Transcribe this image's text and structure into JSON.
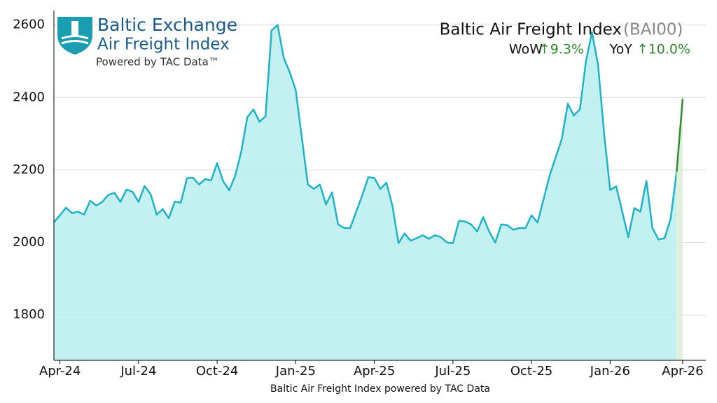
{
  "chart_data": {
    "type": "area",
    "brand": {
      "name": "Baltic Exchange",
      "product": "Air Freight Index",
      "powered": "Powered by TAC Data™"
    },
    "title": "Baltic Air Freight Index",
    "code": "(BAI00)",
    "changes": [
      {
        "label": "WoW",
        "value_label": "↑9.3%"
      },
      {
        "label": "YoY",
        "value_label": "↑10.0%"
      }
    ],
    "footer": "Baltic Air Freight Index powered by TAC Data",
    "categories": [
      null,
      "Apr-24",
      null,
      null,
      null,
      null,
      null,
      null,
      null,
      null,
      null,
      null,
      null,
      null,
      "Jul-24",
      null,
      null,
      null,
      null,
      null,
      null,
      null,
      null,
      null,
      null,
      null,
      null,
      "Oct-24",
      null,
      null,
      null,
      null,
      null,
      null,
      null,
      null,
      null,
      null,
      null,
      null,
      "Jan-25",
      null,
      null,
      null,
      null,
      null,
      null,
      null,
      null,
      null,
      null,
      null,
      null,
      "Apr-25",
      null,
      null,
      null,
      null,
      null,
      null,
      null,
      null,
      null,
      null,
      null,
      null,
      "Jul-25",
      null,
      null,
      null,
      null,
      null,
      null,
      null,
      null,
      null,
      null,
      null,
      null,
      "Oct-25",
      null,
      null,
      null,
      null,
      null,
      null,
      null,
      null,
      null,
      null,
      null,
      null,
      "Jan-26",
      null,
      null,
      null,
      null,
      null,
      null,
      null,
      null,
      null,
      null,
      null,
      "Apr-26"
    ],
    "series": [
      {
        "color": "#1fb3c8",
        "fill": "#bdeef0",
        "latest_color": "#2e8b2e",
        "latest_fill": "#dff0d8",
        "values": [
          2056,
          2075,
          2096,
          2081,
          2085,
          2077,
          2115,
          2102,
          2112,
          2131,
          2137,
          2112,
          2146,
          2140,
          2112,
          2156,
          2133,
          2077,
          2092,
          2067,
          2113,
          2110,
          2177,
          2179,
          2160,
          2175,
          2171,
          2219,
          2169,
          2144,
          2185,
          2252,
          2346,
          2367,
          2333,
          2348,
          2585,
          2600,
          2510,
          2470,
          2420,
          2290,
          2160,
          2148,
          2160,
          2105,
          2138,
          2050,
          2040,
          2040,
          2085,
          2130,
          2180,
          2178,
          2148,
          2165,
          2100,
          1998,
          2025,
          2005,
          2012,
          2020,
          2010,
          2020,
          2015,
          2000,
          1998,
          2060,
          2058,
          2050,
          2030,
          2070,
          2030,
          2000,
          2050,
          2048,
          2035,
          2040,
          2040,
          2075,
          2055,
          2120,
          2185,
          2235,
          2285,
          2383,
          2350,
          2368,
          2500,
          2580,
          2490,
          2300,
          2145,
          2155,
          2085,
          2015,
          2095,
          2085,
          2170,
          2040,
          2008,
          2012,
          2065,
          2195,
          2397
        ]
      }
    ],
    "ylim": [
      1675,
      2640
    ],
    "yticks": [
      1800,
      2000,
      2200,
      2400,
      2600
    ],
    "grid": true
  }
}
